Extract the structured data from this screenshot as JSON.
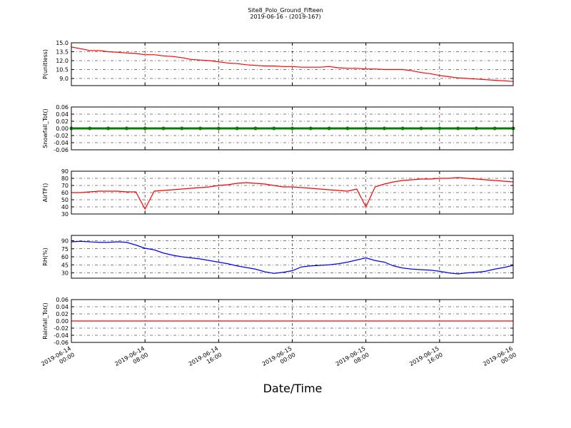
{
  "chart_data": [
    {
      "type": "line",
      "title": "Site8_Polo_Ground_Fifteen",
      "subtitle": "2019-06-16 - (2019-167)",
      "ylabel": "P(unitless)",
      "x": [
        "2019-06-14 00:00",
        "2019-06-14 01:00",
        "2019-06-14 02:00",
        "2019-06-14 03:00",
        "2019-06-14 04:00",
        "2019-06-14 05:00",
        "2019-06-14 06:00",
        "2019-06-14 07:00",
        "2019-06-14 08:00",
        "2019-06-14 09:00",
        "2019-06-14 10:00",
        "2019-06-14 11:00",
        "2019-06-14 12:00",
        "2019-06-14 13:00",
        "2019-06-14 14:00",
        "2019-06-14 15:00",
        "2019-06-14 16:00",
        "2019-06-14 17:00",
        "2019-06-14 18:00",
        "2019-06-14 19:00",
        "2019-06-14 20:00",
        "2019-06-14 21:00",
        "2019-06-14 22:00",
        "2019-06-14 23:00",
        "2019-06-15 00:00",
        "2019-06-15 01:00",
        "2019-06-15 02:00",
        "2019-06-15 03:00",
        "2019-06-15 04:00",
        "2019-06-15 05:00",
        "2019-06-15 06:00",
        "2019-06-15 07:00",
        "2019-06-15 08:00",
        "2019-06-15 09:00",
        "2019-06-15 10:00",
        "2019-06-15 11:00",
        "2019-06-15 12:00",
        "2019-06-15 13:00",
        "2019-06-15 14:00",
        "2019-06-15 15:00",
        "2019-06-15 16:00",
        "2019-06-15 17:00",
        "2019-06-15 18:00",
        "2019-06-15 19:00",
        "2019-06-15 20:00",
        "2019-06-15 21:00",
        "2019-06-15 22:00",
        "2019-06-15 23:00",
        "2019-06-16 00:00"
      ],
      "series": [
        {
          "color": "#ff0000",
          "values": [
            14.3,
            14.0,
            13.7,
            13.7,
            13.5,
            13.4,
            13.3,
            13.2,
            13.0,
            13.0,
            12.8,
            12.7,
            12.5,
            12.2,
            12.1,
            12.0,
            11.8,
            11.6,
            11.5,
            11.3,
            11.2,
            11.1,
            11.1,
            11.0,
            11.0,
            10.9,
            10.9,
            10.9,
            11.0,
            10.8,
            10.7,
            10.7,
            10.6,
            10.6,
            10.5,
            10.5,
            10.5,
            10.3,
            10.0,
            9.8,
            9.5,
            9.3,
            9.1,
            9.0,
            8.9,
            8.8,
            8.7,
            8.6,
            8.5
          ]
        }
      ],
      "xlim": [
        "2019-06-14 00:00",
        "2019-06-16 00:00"
      ],
      "ylim": [
        7.8,
        15.0
      ],
      "yticks": [
        {
          "value": 9.0,
          "label": "9.0"
        },
        10.5,
        {
          "value": 12.0,
          "label": "12.0"
        },
        13.5,
        {
          "value": 15.0,
          "label": "15.0"
        }
      ],
      "grid": true
    },
    {
      "type": "line",
      "ylabel": "Snowfall_Tot()",
      "markers": true,
      "x": [
        "2019-06-14 00:00",
        "2019-06-14 02:00",
        "2019-06-14 04:00",
        "2019-06-14 06:00",
        "2019-06-14 08:00",
        "2019-06-14 10:00",
        "2019-06-14 12:00",
        "2019-06-14 14:00",
        "2019-06-14 16:00",
        "2019-06-14 18:00",
        "2019-06-14 20:00",
        "2019-06-14 22:00",
        "2019-06-15 00:00",
        "2019-06-15 02:00",
        "2019-06-15 04:00",
        "2019-06-15 06:00",
        "2019-06-15 08:00",
        "2019-06-15 10:00",
        "2019-06-15 12:00",
        "2019-06-15 14:00",
        "2019-06-15 16:00",
        "2019-06-15 18:00",
        "2019-06-15 20:00",
        "2019-06-15 22:00",
        "2019-06-16 00:00"
      ],
      "series": [
        {
          "color": "#008000",
          "values": [
            0,
            0,
            0,
            0,
            0,
            0,
            0,
            0,
            0,
            0,
            0,
            0,
            0,
            0,
            0,
            0,
            0,
            0,
            0,
            0,
            0,
            0,
            0,
            0,
            0
          ]
        }
      ],
      "xlim": [
        "2019-06-14 00:00",
        "2019-06-16 00:00"
      ],
      "ylim": [
        -0.06,
        0.06
      ],
      "yticks": [
        -0.06,
        -0.04,
        -0.02,
        {
          "value": 0,
          "label": "0.00"
        },
        0.02,
        0.04,
        0.06
      ],
      "grid": true
    },
    {
      "type": "line",
      "ylabel": "AirTF()",
      "x": [
        "2019-06-14 00:00",
        "2019-06-14 01:00",
        "2019-06-14 02:00",
        "2019-06-14 03:00",
        "2019-06-14 04:00",
        "2019-06-14 05:00",
        "2019-06-14 06:00",
        "2019-06-14 07:00",
        "2019-06-14 08:00",
        "2019-06-14 09:00",
        "2019-06-14 10:00",
        "2019-06-14 11:00",
        "2019-06-14 12:00",
        "2019-06-14 13:00",
        "2019-06-14 14:00",
        "2019-06-14 15:00",
        "2019-06-14 16:00",
        "2019-06-14 17:00",
        "2019-06-14 18:00",
        "2019-06-14 19:00",
        "2019-06-14 20:00",
        "2019-06-14 21:00",
        "2019-06-14 22:00",
        "2019-06-14 23:00",
        "2019-06-15 00:00",
        "2019-06-15 01:00",
        "2019-06-15 02:00",
        "2019-06-15 03:00",
        "2019-06-15 04:00",
        "2019-06-15 05:00",
        "2019-06-15 06:00",
        "2019-06-15 07:00",
        "2019-06-15 08:00",
        "2019-06-15 09:00",
        "2019-06-15 10:00",
        "2019-06-15 11:00",
        "2019-06-15 12:00",
        "2019-06-15 13:00",
        "2019-06-15 14:00",
        "2019-06-15 15:00",
        "2019-06-15 16:00",
        "2019-06-15 17:00",
        "2019-06-15 18:00",
        "2019-06-15 19:00",
        "2019-06-15 20:00",
        "2019-06-15 21:00",
        "2019-06-15 22:00",
        "2019-06-15 23:00",
        "2019-06-16 00:00"
      ],
      "series": [
        {
          "color": "#ff0000",
          "values": [
            60,
            60,
            61,
            62,
            62,
            62,
            61,
            61,
            37,
            62,
            63,
            64,
            65,
            66,
            67,
            68,
            70,
            71,
            73,
            74,
            73,
            72,
            70,
            68,
            68,
            67,
            66,
            65,
            64,
            63,
            62,
            65,
            40,
            68,
            72,
            75,
            77,
            78,
            79,
            79,
            80,
            80,
            81,
            80,
            79,
            78,
            77,
            76,
            75
          ]
        }
      ],
      "xlim": [
        "2019-06-14 00:00",
        "2019-06-16 00:00"
      ],
      "ylim": [
        30,
        90
      ],
      "yticks": [
        30,
        40,
        50,
        60,
        70,
        80,
        90
      ],
      "grid": true
    },
    {
      "type": "line",
      "ylabel": "RH(%)",
      "x": [
        "2019-06-14 00:00",
        "2019-06-14 01:00",
        "2019-06-14 02:00",
        "2019-06-14 03:00",
        "2019-06-14 04:00",
        "2019-06-14 05:00",
        "2019-06-14 06:00",
        "2019-06-14 07:00",
        "2019-06-14 08:00",
        "2019-06-14 09:00",
        "2019-06-14 10:00",
        "2019-06-14 11:00",
        "2019-06-14 12:00",
        "2019-06-14 13:00",
        "2019-06-14 14:00",
        "2019-06-14 15:00",
        "2019-06-14 16:00",
        "2019-06-14 17:00",
        "2019-06-14 18:00",
        "2019-06-14 19:00",
        "2019-06-14 20:00",
        "2019-06-14 21:00",
        "2019-06-14 22:00",
        "2019-06-14 23:00",
        "2019-06-15 00:00",
        "2019-06-15 01:00",
        "2019-06-15 02:00",
        "2019-06-15 03:00",
        "2019-06-15 04:00",
        "2019-06-15 05:00",
        "2019-06-15 06:00",
        "2019-06-15 07:00",
        "2019-06-15 08:00",
        "2019-06-15 09:00",
        "2019-06-15 10:00",
        "2019-06-15 11:00",
        "2019-06-15 12:00",
        "2019-06-15 13:00",
        "2019-06-15 14:00",
        "2019-06-15 15:00",
        "2019-06-15 16:00",
        "2019-06-15 17:00",
        "2019-06-15 18:00",
        "2019-06-15 19:00",
        "2019-06-15 20:00",
        "2019-06-15 21:00",
        "2019-06-15 22:00",
        "2019-06-15 23:00",
        "2019-06-16 00:00"
      ],
      "series": [
        {
          "color": "#0000ff",
          "values": [
            88,
            89,
            88,
            87,
            87,
            88,
            87,
            82,
            76,
            73,
            67,
            63,
            60,
            58,
            56,
            53,
            50,
            47,
            43,
            40,
            37,
            32,
            29,
            31,
            34,
            41,
            43,
            44,
            45,
            47,
            50,
            54,
            58,
            53,
            50,
            43,
            39,
            37,
            36,
            35,
            33,
            30,
            28,
            30,
            31,
            33,
            37,
            40,
            44
          ]
        }
      ],
      "xlim": [
        "2019-06-14 00:00",
        "2019-06-16 00:00"
      ],
      "ylim": [
        20,
        100
      ],
      "yticks": [
        30,
        45,
        60,
        75,
        90
      ],
      "grid": true
    },
    {
      "type": "line",
      "ylabel": "Rainfall_Tot()",
      "xlabel": "Date/Time",
      "x": [
        "2019-06-14 00:00",
        "2019-06-14 02:00",
        "2019-06-14 04:00",
        "2019-06-14 06:00",
        "2019-06-14 08:00",
        "2019-06-14 10:00",
        "2019-06-14 12:00",
        "2019-06-14 14:00",
        "2019-06-14 16:00",
        "2019-06-14 18:00",
        "2019-06-14 20:00",
        "2019-06-14 22:00",
        "2019-06-15 00:00",
        "2019-06-15 02:00",
        "2019-06-15 04:00",
        "2019-06-15 06:00",
        "2019-06-15 08:00",
        "2019-06-15 10:00",
        "2019-06-15 12:00",
        "2019-06-15 14:00",
        "2019-06-15 16:00",
        "2019-06-15 18:00",
        "2019-06-15 20:00",
        "2019-06-15 22:00",
        "2019-06-16 00:00"
      ],
      "series": [
        {
          "color": "#ff0000",
          "values": [
            0,
            0,
            0,
            0,
            0,
            0,
            0,
            0,
            0,
            0,
            0,
            0,
            0,
            0,
            0,
            0,
            0,
            0,
            0,
            0,
            0,
            0,
            0,
            0,
            0
          ]
        }
      ],
      "xlim": [
        "2019-06-14 00:00",
        "2019-06-16 00:00"
      ],
      "ylim": [
        -0.06,
        0.06
      ],
      "xticks": [
        "2019-06-14 00:00",
        "2019-06-14 08:00",
        "2019-06-14 16:00",
        "2019-06-15 00:00",
        "2019-06-15 08:00",
        "2019-06-15 16:00",
        "2019-06-16 00:00"
      ],
      "yticks": [
        -0.06,
        -0.04,
        -0.02,
        {
          "value": 0,
          "label": "0.00"
        },
        0.02,
        0.04,
        0.06
      ],
      "grid": true
    }
  ]
}
